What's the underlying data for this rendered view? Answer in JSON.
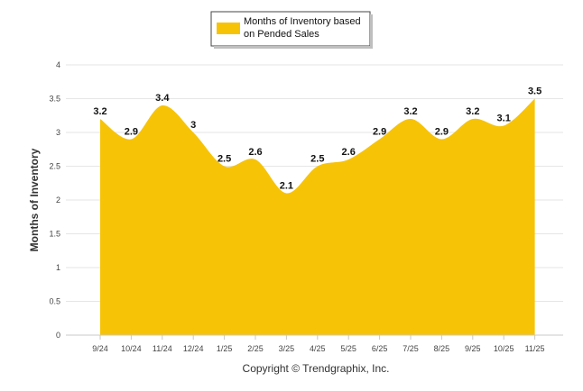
{
  "chart_data": {
    "type": "area",
    "title": "",
    "xlabel": "",
    "ylabel": "Months of Inventory",
    "categories": [
      "9/24",
      "10/24",
      "11/24",
      "12/24",
      "1/25",
      "2/25",
      "3/25",
      "4/25",
      "5/25",
      "6/25",
      "7/25",
      "8/25",
      "9/25",
      "10/25",
      "11/25"
    ],
    "series": [
      {
        "name": "Months of Inventory based on Pended Sales",
        "values": [
          3.2,
          2.9,
          3.4,
          3.0,
          2.5,
          2.6,
          2.1,
          2.5,
          2.6,
          2.9,
          3.2,
          2.9,
          3.2,
          3.1,
          3.5
        ],
        "labels": [
          "3.2",
          "2.9",
          "3.4",
          "3",
          "2.5",
          "2.6",
          "2.1",
          "2.5",
          "2.6",
          "2.9",
          "3.2",
          "2.9",
          "3.2",
          "3.1",
          "3.5"
        ],
        "color": "#f7c307"
      }
    ],
    "ylim": [
      0,
      4
    ],
    "yticks": [
      "0",
      "0.5",
      "1",
      "1.5",
      "2",
      "2.5",
      "3",
      "3.5",
      "4"
    ],
    "grid": true,
    "legend_position": "top-center",
    "legend_lines": [
      "Months of Inventory based",
      "on Pended Sales"
    ],
    "credit": "Copyright © Trendgraphix, Inc."
  }
}
